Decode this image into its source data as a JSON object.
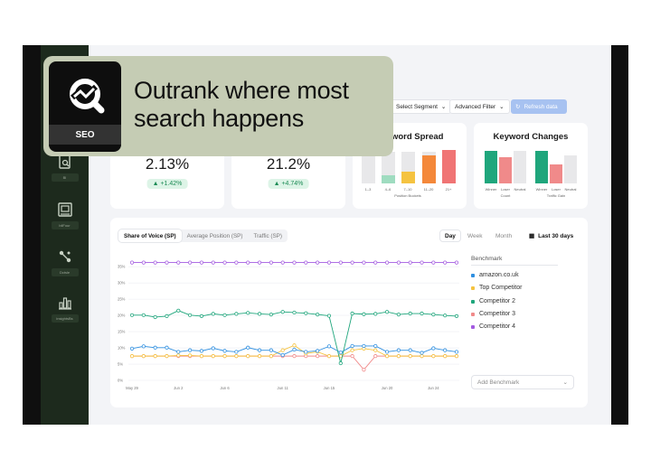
{
  "overlay": {
    "badge": "SEO",
    "headline_line1": "Outrank where most",
    "headline_line2": "search happens"
  },
  "sidebar": {
    "items": [
      {
        "label": "BI",
        "icon": "report-search-icon"
      },
      {
        "label": "bilFour",
        "icon": "window-user-icon"
      },
      {
        "label": "Dctsle",
        "icon": "nodes-icon"
      },
      {
        "label": "insightsBs",
        "icon": "bar-chart-icon"
      }
    ]
  },
  "toolbar": {
    "segment_label": "Select Segment",
    "filter_label": "Advanced Filter",
    "refresh_label": "Refresh data"
  },
  "stats": [
    {
      "value": "2.13%",
      "delta": "+1.42%"
    },
    {
      "value": "21.2%",
      "delta": "+4.74%"
    }
  ],
  "keyword_spread": {
    "title": "Keyword Spread",
    "categories": [
      "1–3",
      "4–6",
      "7–10",
      "11–20",
      "21+"
    ],
    "xlabel": "Position Buckets"
  },
  "keyword_changes": {
    "title": "Keyword Changes",
    "group1_label": "Count",
    "group2_label": "Traffic Gain",
    "bar_labels": [
      "Winner",
      "Loser",
      "Neutral"
    ]
  },
  "tabs": [
    "Share of Voice (SP)",
    "Average Position (SP)",
    "Traffic (SP)"
  ],
  "periods": [
    "Day",
    "Week",
    "Month"
  ],
  "date_range": "Last 30 days",
  "benchmark": {
    "title": "Benchmark",
    "add_label": "Add Benchmark",
    "items": [
      {
        "name": "amazon.co.uk",
        "color": "#2f8fe0"
      },
      {
        "name": "Top Competitor",
        "color": "#f5c341"
      },
      {
        "name": "Competitor 2",
        "color": "#1fa67c"
      },
      {
        "name": "Competitor 3",
        "color": "#f08a8a"
      },
      {
        "name": "Competitor 4",
        "color": "#a35be0"
      }
    ]
  },
  "chart_data": {
    "type": "line",
    "x": [
      "May 29",
      "May 30",
      "May 31",
      "Jun 1",
      "Jun 2",
      "Jun 3",
      "Jun 4",
      "Jun 5",
      "Jun 6",
      "Jun 7",
      "Jun 8",
      "Jun 9",
      "Jun 10",
      "Jun 11",
      "Jun 12",
      "Jun 13",
      "Jun 14",
      "Jun 15",
      "Jun 16",
      "Jun 17",
      "Jun 18",
      "Jun 19",
      "Jun 20",
      "Jun 21",
      "Jun 22",
      "Jun 23",
      "Jun 24",
      "Jun 25",
      "Jun 26"
    ],
    "xtick_labels": [
      "May 29",
      "Jun 2",
      "Jun 6",
      "Jun 11",
      "Jun 15",
      "Jun 20",
      "Jun 24"
    ],
    "xtick_index": [
      0,
      4,
      8,
      13,
      17,
      22,
      26
    ],
    "yticks": [
      "0%",
      "5%",
      "10%",
      "15%",
      "20%",
      "25%",
      "30%",
      "35%"
    ],
    "ylim": [
      0,
      37
    ],
    "grid": true,
    "series": [
      {
        "name": "amazon.co.uk",
        "color": "#2f8fe0",
        "values": [
          9.5,
          10.2,
          9.8,
          9.8,
          8.5,
          9.0,
          8.8,
          9.6,
          8.8,
          8.5,
          9.8,
          9.0,
          9.0,
          7.5,
          9.2,
          8.5,
          8.8,
          10.2,
          8.3,
          10.3,
          10.3,
          10.3,
          8.5,
          9.0,
          9.0,
          8.2,
          9.6,
          9.0,
          8.5
        ]
      },
      {
        "name": "Top Competitor",
        "color": "#f5c341",
        "values": [
          7.2,
          7.2,
          7.2,
          7.2,
          7.4,
          7.4,
          7.2,
          7.2,
          7.2,
          7.2,
          7.2,
          7.2,
          7.2,
          9.0,
          10.5,
          8.0,
          8.5,
          7.2,
          7.2,
          9.0,
          9.5,
          9.0,
          7.2,
          7.2,
          7.2,
          7.2,
          7.2,
          7.2,
          7.2
        ]
      },
      {
        "name": "Competitor 2",
        "color": "#1fa67c",
        "values": [
          19.8,
          19.8,
          19.2,
          19.5,
          21.2,
          19.8,
          19.5,
          20.2,
          19.8,
          20.2,
          20.5,
          20.2,
          20.0,
          20.8,
          20.6,
          20.4,
          20.0,
          19.6,
          5.0,
          20.3,
          20.1,
          20.2,
          20.8,
          20.0,
          20.3,
          20.3,
          20.0,
          19.7,
          19.5
        ]
      },
      {
        "name": "Competitor 3",
        "color": "#f08a8a",
        "values": [
          7.2,
          7.2,
          7.2,
          7.2,
          7.2,
          7.2,
          7.2,
          7.2,
          7.2,
          7.2,
          7.2,
          7.2,
          7.2,
          7.2,
          7.2,
          7.2,
          7.2,
          7.2,
          7.2,
          7.2,
          3.0,
          7.2,
          7.2,
          7.2,
          7.2,
          7.2,
          7.2,
          7.2,
          7.2
        ]
      },
      {
        "name": "Competitor 4",
        "color": "#a35be0",
        "values": [
          36,
          36,
          36,
          36,
          36,
          36,
          36,
          36,
          36,
          36,
          36,
          36,
          36,
          36,
          36,
          36,
          36,
          36,
          36,
          36,
          36,
          36,
          36,
          36,
          36,
          36,
          36,
          36,
          36
        ]
      }
    ]
  }
}
